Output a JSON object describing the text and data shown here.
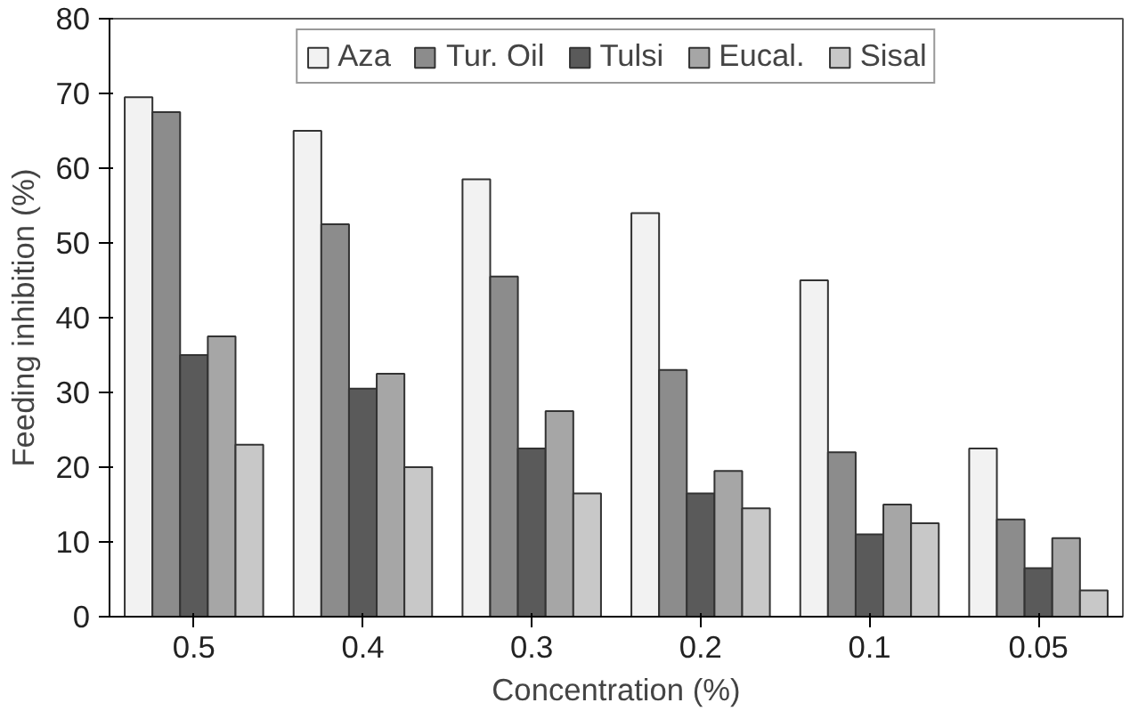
{
  "chart_data": {
    "type": "bar",
    "xlabel": "Concentration (%)",
    "ylabel": "Feeding inhibition (%)",
    "categories": [
      "0.5",
      "0.4",
      "0.3",
      "0.2",
      "0.1",
      "0.05"
    ],
    "series": [
      {
        "name": "Aza",
        "color": "#f2f2f2",
        "values": [
          69.5,
          65,
          58.5,
          54,
          45,
          22.5
        ]
      },
      {
        "name": "Tur. Oil",
        "color": "#8c8c8c",
        "values": [
          67.5,
          52.5,
          45.5,
          33,
          22,
          13
        ]
      },
      {
        "name": "Tulsi",
        "color": "#5a5a5a",
        "values": [
          35,
          30.5,
          22.5,
          16.5,
          11,
          6.5
        ]
      },
      {
        "name": "Eucal.",
        "color": "#a6a6a6",
        "values": [
          37.5,
          32.5,
          27.5,
          19.5,
          15,
          10.5
        ]
      },
      {
        "name": "Sisal",
        "color": "#c8c8c8",
        "values": [
          23,
          20,
          16.5,
          14.5,
          12.5,
          3.5
        ]
      }
    ],
    "ylim": [
      0,
      80
    ],
    "yticks": [
      0,
      10,
      20,
      30,
      40,
      50,
      60,
      70,
      80
    ],
    "grid": false,
    "legend": "top"
  }
}
